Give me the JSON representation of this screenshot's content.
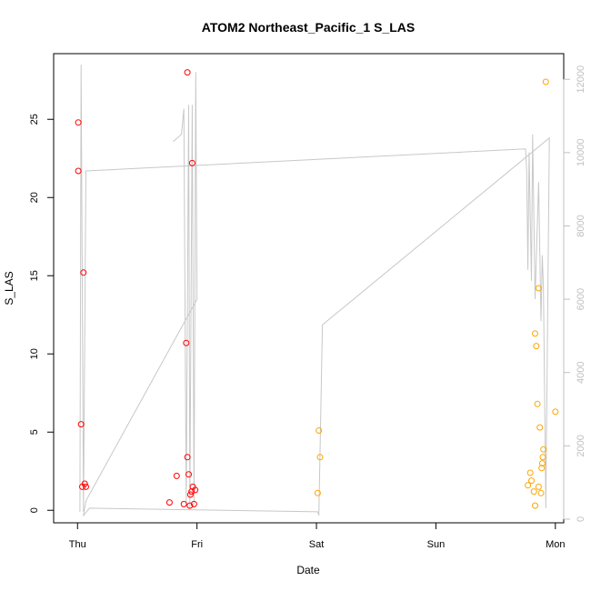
{
  "chart_data": {
    "type": "scatter",
    "title": "ATOM2 Northeast_Pacific_1 S_LAS",
    "xlabel": "Date",
    "ylabel": "S_LAS",
    "x_ticks": [
      "Thu",
      "Fri",
      "Sat",
      "Sun",
      "Mon"
    ],
    "x_range": [
      -0.2,
      4.07
    ],
    "y_left_ticks": [
      "0",
      "5",
      "10",
      "15",
      "20",
      "25"
    ],
    "y_left_range": [
      -0.8,
      29.2
    ],
    "y_right_ticks": [
      "0",
      "2000",
      "4000",
      "6000",
      "8000",
      "10000",
      "12000"
    ],
    "y_right_range": [
      -100,
      12700
    ],
    "grid": false,
    "colors": {
      "red_series": "#ff0000",
      "orange_series": "#ffa500",
      "line": "#c8c8c8",
      "right_axis": "#c0c0c0"
    },
    "series": [
      {
        "color": "red",
        "points": [
          [
            0.006,
            24.8
          ],
          [
            0.006,
            21.7
          ],
          [
            0.03,
            5.5
          ],
          [
            0.04,
            1.5
          ],
          [
            0.05,
            15.2
          ],
          [
            0.06,
            1.7
          ],
          [
            0.07,
            1.5
          ],
          [
            0.77,
            0.5
          ],
          [
            0.83,
            2.2
          ],
          [
            0.89,
            0.4
          ],
          [
            0.91,
            10.7
          ],
          [
            0.92,
            3.4
          ],
          [
            0.92,
            28.0
          ],
          [
            0.93,
            2.3
          ],
          [
            0.94,
            0.3
          ],
          [
            0.945,
            1.0
          ],
          [
            0.955,
            1.2
          ],
          [
            0.96,
            22.2
          ],
          [
            0.965,
            1.5
          ],
          [
            0.975,
            0.4
          ],
          [
            0.985,
            1.3
          ]
        ]
      },
      {
        "color": "orange",
        "points": [
          [
            2.01,
            1.1
          ],
          [
            2.02,
            5.1
          ],
          [
            2.03,
            3.4
          ],
          [
            3.77,
            1.6
          ],
          [
            3.79,
            2.4
          ],
          [
            3.8,
            1.9
          ],
          [
            3.82,
            1.2
          ],
          [
            3.83,
            0.3
          ],
          [
            3.83,
            11.3
          ],
          [
            3.84,
            10.5
          ],
          [
            3.85,
            6.8
          ],
          [
            3.86,
            1.5
          ],
          [
            3.86,
            14.2
          ],
          [
            3.87,
            5.3
          ],
          [
            3.88,
            1.1
          ],
          [
            3.885,
            2.7
          ],
          [
            3.89,
            3.0
          ],
          [
            3.895,
            3.4
          ],
          [
            3.9,
            3.9
          ],
          [
            3.92,
            27.4
          ],
          [
            4.0,
            6.3
          ]
        ]
      }
    ],
    "line_series": {
      "axis": "right",
      "points": [
        [
          0.02,
          200
        ],
        [
          0.03,
          12400
        ],
        [
          0.05,
          200
        ],
        [
          0.07,
          9500
        ],
        [
          3.75,
          10100
        ],
        [
          3.76,
          9500
        ],
        [
          3.77,
          6800
        ],
        [
          3.78,
          10000
        ],
        [
          3.8,
          6500
        ],
        [
          3.81,
          10500
        ],
        [
          3.83,
          6000
        ],
        [
          3.86,
          9200
        ],
        [
          3.88,
          5400
        ],
        [
          3.89,
          7200
        ],
        [
          3.9,
          6300
        ],
        [
          3.92,
          300
        ],
        [
          3.95,
          10400
        ],
        [
          2.05,
          5300
        ],
        [
          2.02,
          100
        ],
        [
          2.01,
          200
        ],
        [
          0.1,
          300
        ],
        [
          0.05,
          100
        ],
        [
          0.07,
          500
        ],
        [
          1.0,
          6000
        ],
        [
          0.99,
          12200
        ],
        [
          0.975,
          400
        ],
        [
          0.96,
          11300
        ],
        [
          0.94,
          300
        ],
        [
          0.93,
          11300
        ],
        [
          0.91,
          400
        ],
        [
          0.89,
          11200
        ],
        [
          0.87,
          10500
        ],
        [
          0.8,
          10300
        ]
      ]
    }
  }
}
